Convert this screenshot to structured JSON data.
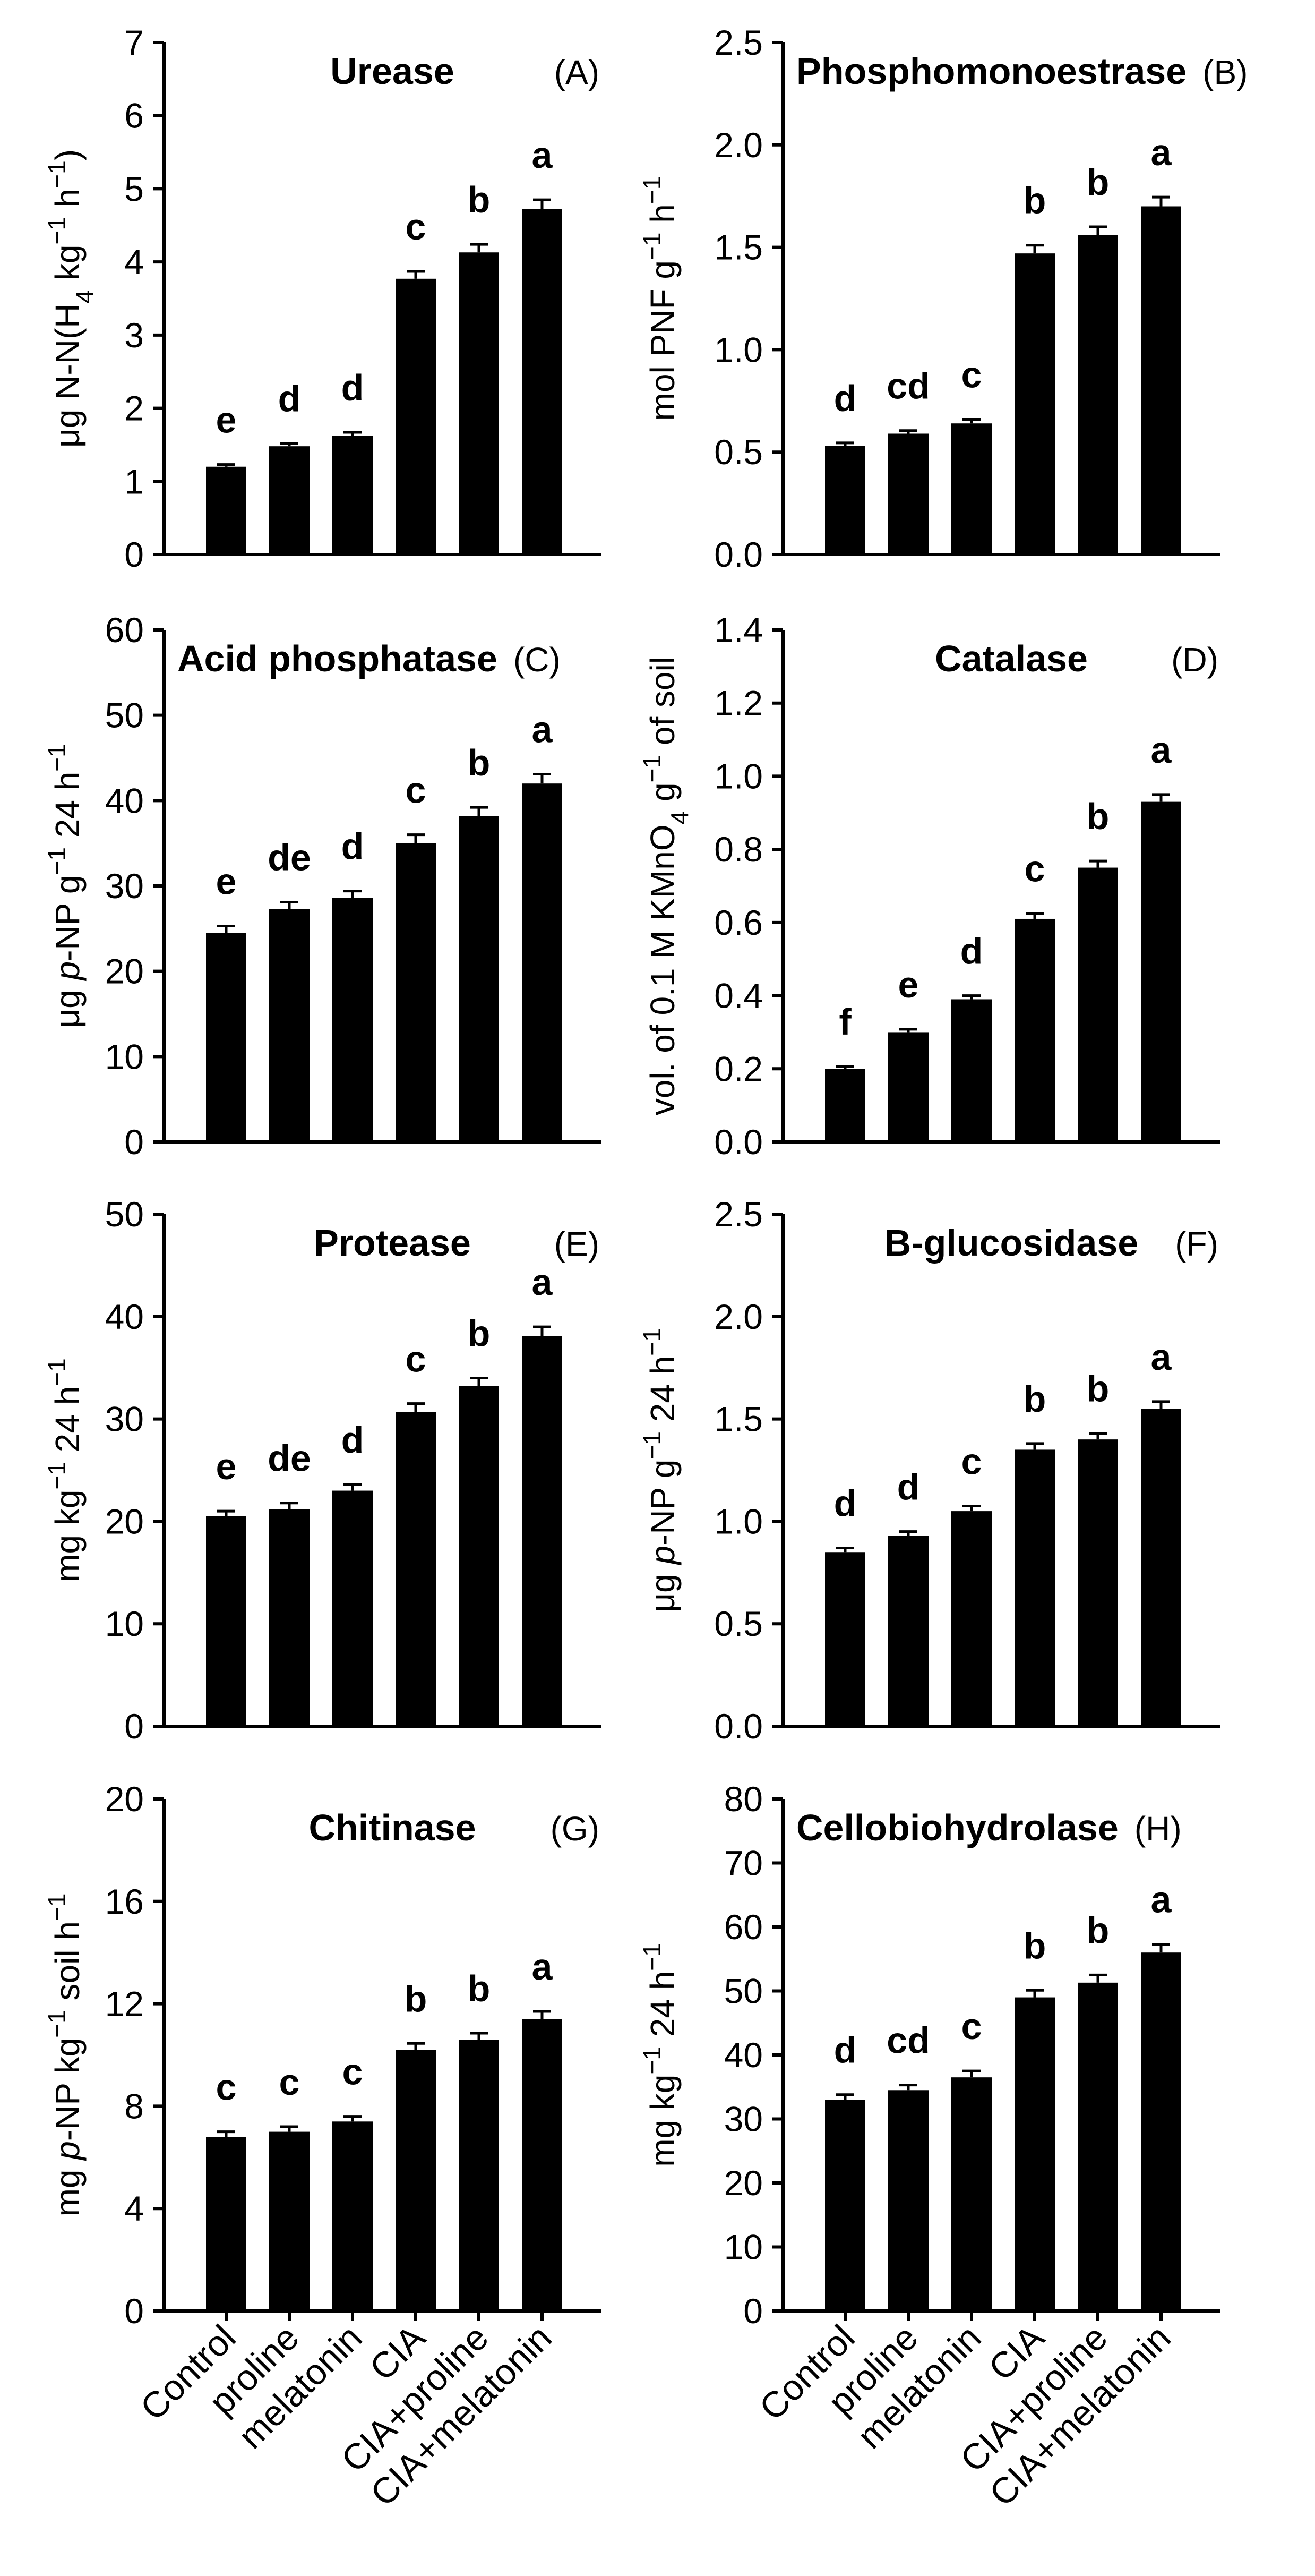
{
  "colors": {
    "bar": "#000000",
    "axis": "#000000",
    "background": "#ffffff"
  },
  "chart_data": [
    {
      "type": "bar",
      "panel": "(A)",
      "title": "Urease",
      "ylabel": [
        {
          "t": "μg N-N(H"
        },
        {
          "t": "4",
          "s": "sub"
        },
        {
          "t": " kg"
        },
        {
          "t": "−1",
          "s": "sup"
        },
        {
          "t": " h"
        },
        {
          "t": "−1",
          "s": "sup"
        },
        {
          "t": ")"
        }
      ],
      "ylim": [
        0,
        7
      ],
      "yticks": [
        "0",
        "1",
        "2",
        "3",
        "4",
        "5",
        "6",
        "7"
      ],
      "ytick_values": [
        0,
        1,
        2,
        3,
        4,
        5,
        6,
        7
      ],
      "categories": [
        "Control",
        "proline",
        "melatonin",
        "CIA",
        "CIA+proline",
        "CIA+melatonin"
      ],
      "values": [
        1.2,
        1.48,
        1.62,
        3.77,
        4.13,
        4.72
      ],
      "errors": [
        0.03,
        0.04,
        0.05,
        0.1,
        0.11,
        0.13
      ],
      "letters": [
        "e",
        "d",
        "d",
        "c",
        "b",
        "a"
      ]
    },
    {
      "type": "bar",
      "panel": "(B)",
      "title": "Phosphomonoestrase",
      "ylabel": [
        {
          "t": "mol PNF g"
        },
        {
          "t": "−1",
          "s": "sup"
        },
        {
          "t": " h"
        },
        {
          "t": "−1",
          "s": "sup"
        }
      ],
      "ylim": [
        0,
        2.5
      ],
      "yticks": [
        "0.0",
        "0.5",
        "1.0",
        "1.5",
        "2.0",
        "2.5"
      ],
      "ytick_values": [
        0,
        0.5,
        1,
        1.5,
        2,
        2.5
      ],
      "categories": [
        "Control",
        "proline",
        "melatonin",
        "CIA",
        "CIA+proline",
        "CIA+melatonin"
      ],
      "values": [
        0.53,
        0.59,
        0.64,
        1.47,
        1.56,
        1.7
      ],
      "errors": [
        0.015,
        0.015,
        0.02,
        0.04,
        0.04,
        0.045
      ],
      "letters": [
        "d",
        "cd",
        "c",
        "b",
        "b",
        "a"
      ]
    },
    {
      "type": "bar",
      "panel": "(C)",
      "title": "Acid phosphatase",
      "ylabel": [
        {
          "t": "μg "
        },
        {
          "t": "p",
          "s": "it"
        },
        {
          "t": "-NP g"
        },
        {
          "t": "−1",
          "s": "sup"
        },
        {
          "t": " 24 h"
        },
        {
          "t": "−1",
          "s": "sup"
        }
      ],
      "ylim": [
        0,
        60
      ],
      "yticks": [
        "0",
        "10",
        "20",
        "30",
        "40",
        "50",
        "60"
      ],
      "ytick_values": [
        0,
        10,
        20,
        30,
        40,
        50,
        60
      ],
      "categories": [
        "Control",
        "proline",
        "melatonin",
        "CIA",
        "CIA+proline",
        "CIA+melatonin"
      ],
      "values": [
        24.5,
        27.3,
        28.6,
        35.0,
        38.2,
        42.0
      ],
      "errors": [
        0.8,
        0.8,
        0.8,
        1.0,
        1.0,
        1.1
      ],
      "letters": [
        "e",
        "de",
        "d",
        "c",
        "b",
        "a"
      ]
    },
    {
      "type": "bar",
      "panel": "(D)",
      "title": "Catalase",
      "ylabel": [
        {
          "t": "vol. of 0.1 M KMnO"
        },
        {
          "t": "4",
          "s": "sub"
        },
        {
          "t": " g"
        },
        {
          "t": "−1",
          "s": "sup"
        },
        {
          "t": " of soil"
        }
      ],
      "ylim": [
        0,
        1.4
      ],
      "yticks": [
        "0.0",
        "0.2",
        "0.4",
        "0.6",
        "0.8",
        "1.0",
        "1.2",
        "1.4"
      ],
      "ytick_values": [
        0,
        0.2,
        0.4,
        0.6,
        0.8,
        1.0,
        1.2,
        1.4
      ],
      "categories": [
        "Control",
        "proline",
        "melatonin",
        "CIA",
        "CIA+proline",
        "CIA+melatonin"
      ],
      "values": [
        0.2,
        0.3,
        0.39,
        0.61,
        0.75,
        0.93
      ],
      "errors": [
        0.006,
        0.008,
        0.01,
        0.015,
        0.018,
        0.02
      ],
      "letters": [
        "f",
        "e",
        "d",
        "c",
        "b",
        "a"
      ]
    },
    {
      "type": "bar",
      "panel": "(E)",
      "title": "Protease",
      "ylabel": [
        {
          "t": "mg kg"
        },
        {
          "t": "−1",
          "s": "sup"
        },
        {
          "t": " 24 h"
        },
        {
          "t": "−1",
          "s": "sup"
        }
      ],
      "ylim": [
        0,
        50
      ],
      "yticks": [
        "0",
        "10",
        "20",
        "30",
        "40",
        "50"
      ],
      "ytick_values": [
        0,
        10,
        20,
        30,
        40,
        50
      ],
      "categories": [
        "Control",
        "proline",
        "melatonin",
        "CIA",
        "CIA+proline",
        "CIA+melatonin"
      ],
      "values": [
        20.5,
        21.2,
        23.0,
        30.7,
        33.2,
        38.1
      ],
      "errors": [
        0.5,
        0.6,
        0.6,
        0.8,
        0.8,
        0.9
      ],
      "letters": [
        "e",
        "de",
        "d",
        "c",
        "b",
        "a"
      ]
    },
    {
      "type": "bar",
      "panel": "(F)",
      "title": "B-glucosidase",
      "ylabel": [
        {
          "t": "μg "
        },
        {
          "t": "p",
          "s": "it"
        },
        {
          "t": "-NP g"
        },
        {
          "t": "−1",
          "s": "sup"
        },
        {
          "t": " 24 h"
        },
        {
          "t": "−1",
          "s": "sup"
        }
      ],
      "ylim": [
        0,
        2.5
      ],
      "yticks": [
        "0.0",
        "0.5",
        "1.0",
        "1.5",
        "2.0",
        "2.5"
      ],
      "ytick_values": [
        0,
        0.5,
        1,
        1.5,
        2,
        2.5
      ],
      "categories": [
        "Control",
        "proline",
        "melatonin",
        "CIA",
        "CIA+proline",
        "CIA+melatonin"
      ],
      "values": [
        0.85,
        0.93,
        1.05,
        1.35,
        1.4,
        1.55
      ],
      "errors": [
        0.02,
        0.02,
        0.025,
        0.03,
        0.03,
        0.035
      ],
      "letters": [
        "d",
        "d",
        "c",
        "b",
        "b",
        "a"
      ]
    },
    {
      "type": "bar",
      "panel": "(G)",
      "title": "Chitinase",
      "ylabel": [
        {
          "t": "mg "
        },
        {
          "t": "p",
          "s": "it"
        },
        {
          "t": "-NP kg"
        },
        {
          "t": "−1",
          "s": "sup"
        },
        {
          "t": " soil h"
        },
        {
          "t": "−1",
          "s": "sup"
        }
      ],
      "ylim": [
        0,
        20
      ],
      "yticks": [
        "0",
        "4",
        "8",
        "12",
        "16",
        "20"
      ],
      "ytick_values": [
        0,
        4,
        8,
        12,
        16,
        20
      ],
      "categories": [
        "Control",
        "proline",
        "melatonin",
        "CIA",
        "CIA+proline",
        "CIA+melatonin"
      ],
      "values": [
        6.8,
        7.0,
        7.4,
        10.2,
        10.6,
        11.4
      ],
      "errors": [
        0.2,
        0.2,
        0.2,
        0.25,
        0.25,
        0.3
      ],
      "letters": [
        "c",
        "c",
        "c",
        "b",
        "b",
        "a"
      ]
    },
    {
      "type": "bar",
      "panel": "(H)",
      "title": "Cellobiohydrolase",
      "ylabel": [
        {
          "t": "mg kg"
        },
        {
          "t": "−1",
          "s": "sup"
        },
        {
          "t": " 24 h"
        },
        {
          "t": "−1",
          "s": "sup"
        }
      ],
      "ylim": [
        0,
        80
      ],
      "yticks": [
        "0",
        "10",
        "20",
        "30",
        "40",
        "50",
        "60",
        "70",
        "80"
      ],
      "ytick_values": [
        0,
        10,
        20,
        30,
        40,
        50,
        60,
        70,
        80
      ],
      "categories": [
        "Control",
        "proline",
        "melatonin",
        "CIA",
        "CIA+proline",
        "CIA+melatonin"
      ],
      "values": [
        33.0,
        34.5,
        36.5,
        49.0,
        51.3,
        56.0
      ],
      "errors": [
        0.8,
        0.8,
        1.0,
        1.1,
        1.2,
        1.3
      ],
      "letters": [
        "d",
        "cd",
        "c",
        "b",
        "b",
        "a"
      ]
    }
  ]
}
